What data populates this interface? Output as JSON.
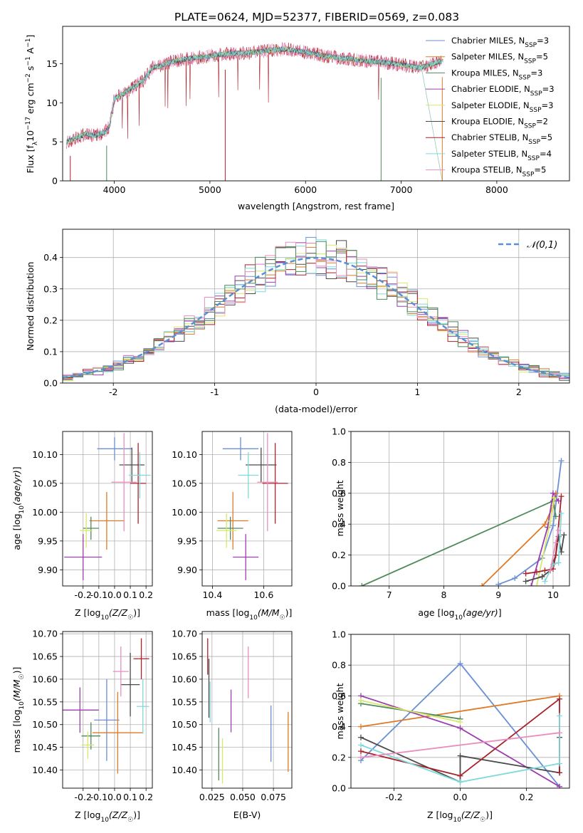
{
  "title": "PLATE=0624, MJD=52377, FIBERID=0569, z=0.083",
  "colors": [
    "#6a8fd6",
    "#e07a26",
    "#4f8a5a",
    "#9c3fae",
    "#d7e86a",
    "#4a4a4a",
    "#a8222a",
    "#7fd9db",
    "#e88fbf"
  ],
  "chart_data": [
    {
      "type": "line",
      "id": "spectrum",
      "xlabel": "wavelength [Angstrom, rest frame]",
      "ylabel": "Flux [f_λ 10^-17 erg cm^-2 s^-1 A^-1]",
      "xlim": [
        3460,
        8760
      ],
      "ylim": [
        0,
        19.8
      ],
      "xticks": [
        4000,
        5000,
        6000,
        7000,
        8000
      ],
      "yticks": [
        0,
        5,
        10,
        15
      ],
      "legend": "upper-right",
      "series": [
        {
          "name": "Chabrier MILES, N_SSP=3"
        },
        {
          "name": "Salpeter MILES, N_SSP=5"
        },
        {
          "name": "Kroupa MILES, N_SSP=3"
        },
        {
          "name": "Chabrier ELODIE, N_SSP=3"
        },
        {
          "name": "Salpeter ELODIE, N_SSP=3"
        },
        {
          "name": "Kroupa ELODIE, N_SSP=2"
        },
        {
          "name": "Chabrier STELIB, N_SSP=5"
        },
        {
          "name": "Salpeter STELIB, N_SSP=4"
        },
        {
          "name": "Kroupa STELIB, N_SSP=5"
        }
      ],
      "continuum": {
        "x": [
          3500,
          3600,
          3700,
          3800,
          3900,
          3950,
          4000,
          4100,
          4200,
          4300,
          4400,
          4500,
          4600,
          4800,
          5000,
          5200,
          5400,
          5600,
          5800,
          6000,
          6200,
          6400,
          6600,
          6800,
          7000,
          7200,
          7400
        ],
        "y": [
          5,
          5.5,
          6,
          5.8,
          6.2,
          7,
          10.5,
          11.2,
          12.0,
          12.8,
          14.5,
          14.8,
          15.3,
          15.7,
          16.0,
          16.3,
          16.4,
          16.7,
          16.9,
          16.5,
          16.0,
          15.7,
          15.4,
          15.2,
          14.9,
          14.5,
          15.3
        ]
      }
    },
    {
      "type": "line",
      "id": "residuals",
      "xlabel": "(data-model)/error",
      "ylabel": "Normed distribution",
      "xlim": [
        -2.5,
        2.5
      ],
      "ylim": [
        0,
        0.49
      ],
      "xticks": [
        -2,
        -1,
        0,
        1,
        2
      ],
      "yticks": [
        0.0,
        0.1,
        0.2,
        0.3,
        0.4
      ],
      "legend": "upper-right",
      "gaussian_label": "𝒩(0,1)",
      "histogram_bin_width": 0.1
    },
    {
      "type": "scatter",
      "id": "age-vs-Z",
      "xlabel": "Z [log₁₀(Z/Z☉)]",
      "ylabel": "age  [log₁₀(age/yr)]",
      "xlim": [
        -0.33,
        0.24
      ],
      "ylim": [
        9.872,
        10.14
      ],
      "xticks": [
        -0.2,
        -0.1,
        0.0,
        0.1,
        0.2
      ],
      "yticks": [
        9.9,
        9.95,
        10.0,
        10.05,
        10.1
      ],
      "points": [
        {
          "x": 0.0,
          "y": 10.11,
          "xerr": 0.11,
          "yerr": 0.02
        },
        {
          "x": -0.05,
          "y": 9.985,
          "xerr": 0.11,
          "yerr": 0.05
        },
        {
          "x": -0.15,
          "y": 9.972,
          "xerr": 0.05,
          "yerr": 0.02
        },
        {
          "x": -0.2,
          "y": 9.922,
          "xerr": 0.12,
          "yerr": 0.04
        },
        {
          "x": -0.18,
          "y": 9.968,
          "xerr": 0.04,
          "yerr": 0.03
        },
        {
          "x": 0.11,
          "y": 10.082,
          "xerr": 0.08,
          "yerr": 0.03
        },
        {
          "x": 0.15,
          "y": 10.05,
          "xerr": 0.05,
          "yerr": 0.07
        },
        {
          "x": 0.16,
          "y": 10.064,
          "xerr": 0.07,
          "yerr": 0.04
        },
        {
          "x": 0.06,
          "y": 10.052,
          "xerr": 0.08,
          "yerr": 0.085
        }
      ]
    },
    {
      "type": "scatter",
      "id": "age-vs-mass",
      "xlabel": "mass [log₁₀(M/M☉)]",
      "ylabel": "",
      "xlim": [
        10.36,
        10.71
      ],
      "ylim": [
        9.872,
        10.14
      ],
      "xticks": [
        10.4,
        10.6
      ],
      "yticks": [
        9.9,
        9.95,
        10.0,
        10.05,
        10.1
      ],
      "points": [
        {
          "x": 10.51,
          "y": 10.11,
          "xerr": 0.07,
          "yerr": 0.02
        },
        {
          "x": 10.48,
          "y": 9.985,
          "xerr": 0.06,
          "yerr": 0.05
        },
        {
          "x": 10.47,
          "y": 9.972,
          "xerr": 0.05,
          "yerr": 0.02
        },
        {
          "x": 10.53,
          "y": 9.922,
          "xerr": 0.05,
          "yerr": 0.04
        },
        {
          "x": 10.455,
          "y": 9.968,
          "xerr": 0.04,
          "yerr": 0.03
        },
        {
          "x": 10.59,
          "y": 10.082,
          "xerr": 0.06,
          "yerr": 0.03
        },
        {
          "x": 10.645,
          "y": 10.05,
          "xerr": 0.05,
          "yerr": 0.07
        },
        {
          "x": 10.54,
          "y": 10.064,
          "xerr": 0.04,
          "yerr": 0.04
        },
        {
          "x": 10.615,
          "y": 10.052,
          "xerr": 0.04,
          "yerr": 0.085
        }
      ]
    },
    {
      "type": "line",
      "id": "massweight-vs-age",
      "xlabel": "age  [log₁₀(age/yr)]",
      "ylabel": "mass weight",
      "xlim": [
        6.3,
        10.3
      ],
      "ylim": [
        0,
        1
      ],
      "xticks": [
        7,
        8,
        9,
        10
      ],
      "yticks": [
        0.0,
        0.2,
        0.4,
        0.6,
        0.8,
        1.0
      ],
      "series": [
        {
          "x": [
            9.0,
            9.3,
            9.8,
            10.0,
            10.15
          ],
          "y": [
            0.01,
            0.05,
            0.18,
            0.39,
            0.81
          ]
        },
        {
          "x": [
            8.7,
            9.85,
            10.0,
            10.05
          ],
          "y": [
            0.0,
            0.4,
            0.52,
            0.6
          ]
        },
        {
          "x": [
            6.5,
            10.0,
            10.05
          ],
          "y": [
            0.0,
            0.55,
            0.45
          ]
        },
        {
          "x": [
            9.6,
            9.9,
            10.0,
            10.1
          ],
          "y": [
            0.0,
            0.38,
            0.6,
            0.55
          ]
        },
        {
          "x": [
            9.7,
            9.95,
            10.02
          ],
          "y": [
            0.0,
            0.42,
            0.57
          ]
        },
        {
          "x": [
            9.5,
            9.8,
            9.95,
            10.05,
            10.1,
            10.15,
            10.2
          ],
          "y": [
            0.03,
            0.06,
            0.1,
            0.2,
            0.32,
            0.22,
            0.33
          ]
        },
        {
          "x": [
            9.5,
            9.7,
            9.85,
            10.0,
            10.05,
            10.15
          ],
          "y": [
            0.08,
            0.09,
            0.1,
            0.11,
            0.2,
            0.58
          ]
        },
        {
          "x": [
            9.85,
            10.0,
            10.1,
            10.15
          ],
          "y": [
            0.03,
            0.14,
            0.15,
            0.47
          ]
        },
        {
          "x": [
            9.95,
            10.05,
            10.1
          ],
          "y": [
            0.1,
            0.28,
            0.36
          ]
        }
      ]
    },
    {
      "type": "scatter",
      "id": "mass-vs-Z",
      "xlabel": "Z [log₁₀(Z/Z☉)]",
      "ylabel": "mass [log₁₀(M/M☉)]",
      "xlim": [
        -0.33,
        0.24
      ],
      "ylim": [
        10.36,
        10.705
      ],
      "xticks": [
        -0.2,
        -0.1,
        0.0,
        0.1,
        0.2
      ],
      "yticks": [
        10.4,
        10.45,
        10.5,
        10.55,
        10.6,
        10.65,
        10.7
      ],
      "points": [
        {
          "x": -0.05,
          "y": 10.51,
          "xerr": 0.08,
          "yerr": 0.09
        },
        {
          "x": 0.02,
          "y": 10.482,
          "xerr": 0.16,
          "yerr": 0.09
        },
        {
          "x": -0.15,
          "y": 10.475,
          "xerr": 0.06,
          "yerr": 0.03
        },
        {
          "x": -0.22,
          "y": 10.532,
          "xerr": 0.12,
          "yerr": 0.05
        },
        {
          "x": -0.17,
          "y": 10.455,
          "xerr": 0.04,
          "yerr": 0.03
        },
        {
          "x": 0.1,
          "y": 10.588,
          "xerr": 0.06,
          "yerr": 0.07
        },
        {
          "x": 0.17,
          "y": 10.645,
          "xerr": 0.05,
          "yerr": 0.045
        },
        {
          "x": 0.18,
          "y": 10.54,
          "xerr": 0.04,
          "yerr": 0.06
        },
        {
          "x": 0.04,
          "y": 10.617,
          "xerr": 0.05,
          "yerr": 0.055
        }
      ]
    },
    {
      "type": "scatter",
      "id": "mass-vs-EBV",
      "xlabel": "E(B-V)",
      "ylabel": "",
      "xlim": [
        0.017,
        0.09
      ],
      "ylim": [
        10.36,
        10.705
      ],
      "xticks": [
        0.025,
        0.05,
        0.075
      ],
      "yticks": [
        10.4,
        10.45,
        10.5,
        10.55,
        10.6,
        10.65,
        10.7
      ],
      "points": [
        {
          "x": 0.073,
          "y": 10.48,
          "yerr": 0.062
        },
        {
          "x": 0.087,
          "y": 10.462,
          "yerr": 0.066
        },
        {
          "x": 0.0305,
          "y": 10.435,
          "yerr": 0.058
        },
        {
          "x": 0.0405,
          "y": 10.53,
          "yerr": 0.047
        },
        {
          "x": 0.0335,
          "y": 10.42,
          "yerr": 0.05
        },
        {
          "x": 0.0225,
          "y": 10.58,
          "yerr": 0.065
        },
        {
          "x": 0.0215,
          "y": 10.65,
          "yerr": 0.04
        },
        {
          "x": 0.0235,
          "y": 10.55,
          "yerr": 0.045
        },
        {
          "x": 0.0545,
          "y": 10.615,
          "yerr": 0.057
        }
      ]
    },
    {
      "type": "line",
      "id": "massweight-vs-Z",
      "xlabel": "Z [log₁₀(Z/Z☉)]",
      "ylabel": "mass weight",
      "xlim": [
        -0.33,
        0.33
      ],
      "ylim": [
        0,
        1
      ],
      "xticks": [
        -0.2,
        0.0,
        0.2
      ],
      "yticks": [
        0.0,
        0.2,
        0.4,
        0.6,
        0.8,
        1.0
      ],
      "series": [
        {
          "x": [
            -0.3,
            0.0,
            0.3
          ],
          "y": [
            0.18,
            0.81,
            0.01
          ]
        },
        {
          "x": [
            -0.3,
            0.3
          ],
          "y": [
            0.4,
            0.6
          ]
        },
        {
          "x": [
            -0.3,
            0.0
          ],
          "y": [
            0.55,
            0.45
          ]
        },
        {
          "x": [
            -0.3,
            0.0,
            0.3
          ],
          "y": [
            0.6,
            0.39,
            0.01
          ]
        },
        {
          "x": [
            -0.3,
            0.0
          ],
          "y": [
            0.57,
            0.43
          ]
        },
        {
          "x": [
            -0.3,
            0.0,
            0.0,
            0.3,
            0.3
          ],
          "y": [
            0.33,
            0.04,
            0.21,
            0.1,
            0.33
          ]
        },
        {
          "x": [
            -0.3,
            0.0,
            0.3,
            0.3
          ],
          "y": [
            0.24,
            0.08,
            0.58,
            0.1
          ]
        },
        {
          "x": [
            -0.3,
            0.0,
            0.3,
            0.3
          ],
          "y": [
            0.28,
            0.04,
            0.16,
            0.47
          ]
        },
        {
          "x": [
            -0.3,
            0.3
          ],
          "y": [
            0.2,
            0.36
          ]
        }
      ]
    }
  ]
}
